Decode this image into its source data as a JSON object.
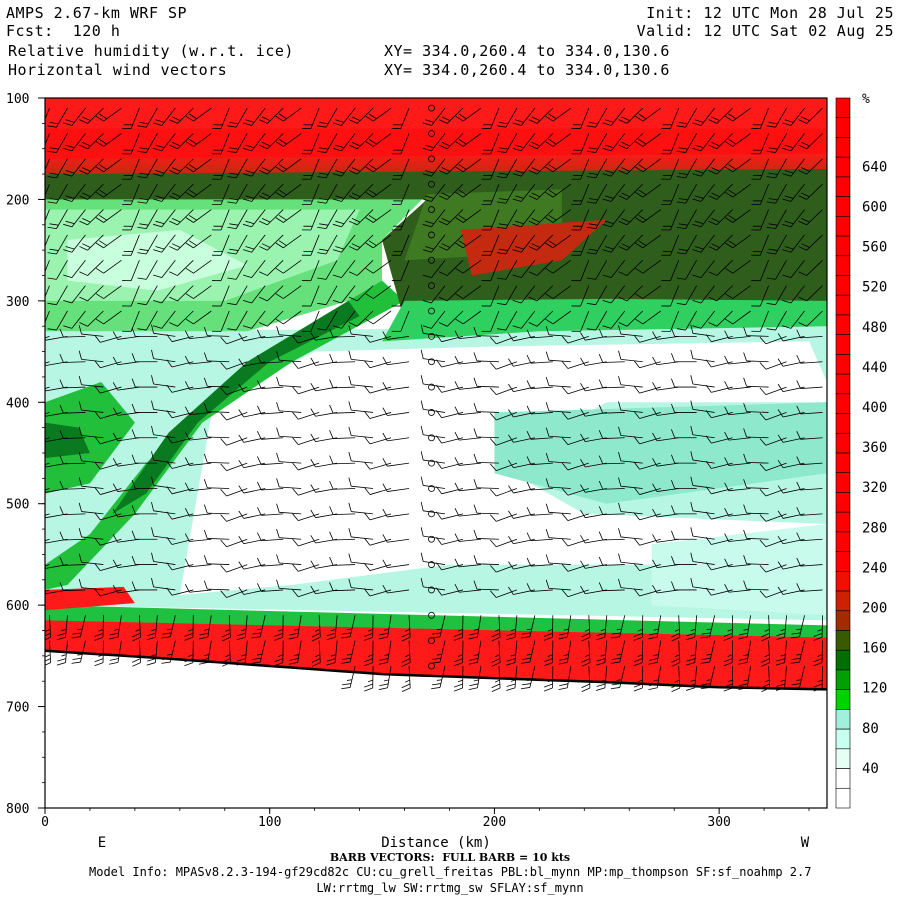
{
  "header": {
    "model": "AMPS 2.67-km WRF SP",
    "fcst": "Fcst:  120 h",
    "field1": "Relative humidity (w.r.t. ice)",
    "field2": "Horizontal wind vectors",
    "xy1": "XY= 334.0,260.4 to 334.0,130.6",
    "xy2": "XY= 334.0,260.4 to 334.0,130.6",
    "init": "Init: 12 UTC Mon 28 Jul 25",
    "valid": "Valid: 12 UTC Sat 02 Aug 25"
  },
  "footer": {
    "barb_note": "BARB VECTORS:  FULL BARB = 10 kts",
    "model_info": "Model Info: MPASv8.2.3-194-gf29cd82c CU:cu_grell_freitas PBL:bl_mynn MP:mp_thompson SF:sf_noahmp 2.7",
    "physics": "LW:rrtmg_lw SW:rrtmg_sw SFLAY:sf_mynn"
  },
  "chart_data": {
    "type": "heatmap",
    "title": "Relative humidity (w.r.t. ice)",
    "xlabel": "Distance (km)",
    "ylabel": "",
    "xlim": [
      0,
      348
    ],
    "ylim": [
      800,
      100
    ],
    "x_ticks": [
      0,
      100,
      200,
      300
    ],
    "y_ticks": [
      100,
      200,
      300,
      400,
      500,
      600,
      700,
      800
    ],
    "x_end_labels": [
      "E",
      "W"
    ],
    "colorbar": {
      "unit": "%",
      "tick_labels": [
        40,
        80,
        120,
        160,
        200,
        240,
        280,
        320,
        360,
        400,
        440,
        480,
        520,
        560,
        600,
        640
      ],
      "colors": [
        "#ffffff",
        "#ffffff",
        "#e6fff5",
        "#c8fff0",
        "#a0f0dc",
        "#00d200",
        "#00a000",
        "#006e00",
        "#3a5a00",
        "#a52a00",
        "#cc2200",
        "#ee1100",
        "#ff0000",
        "#ff0000",
        "#ff0000",
        "#ff0000",
        "#ff0000",
        "#ff0000",
        "#ff0000",
        "#ff0000",
        "#ff0000",
        "#ff0000",
        "#ff0000",
        "#ff0000",
        "#ff0000",
        "#ff0000",
        "#ff0000",
        "#ff0000",
        "#ff0000",
        "#ff0000",
        "#ff0000",
        "#ff0000",
        "#ff0000",
        "#ff0000",
        "#ff0000",
        "#ff0000"
      ]
    },
    "terrain_pressure": [
      {
        "x": 0,
        "p": 645
      },
      {
        "x": 50,
        "p": 652
      },
      {
        "x": 100,
        "p": 660
      },
      {
        "x": 150,
        "p": 668
      },
      {
        "x": 200,
        "p": 672
      },
      {
        "x": 250,
        "p": 676
      },
      {
        "x": 300,
        "p": 681
      },
      {
        "x": 348,
        "p": 683
      }
    ],
    "layers": [
      {
        "label": "upper red",
        "p_top": 100,
        "p_bottom": 165,
        "color": "#ff1a1a"
      },
      {
        "label": "dark green",
        "p_top": 165,
        "p_bottom": 200,
        "color": "#2e5a1a"
      },
      {
        "label": "moist green",
        "p_top": 200,
        "p_bottom": 300,
        "color": "#22cc44"
      },
      {
        "label": "dry white",
        "p_top": 340,
        "p_bottom": 590,
        "color": "#ffffff"
      },
      {
        "label": "low red",
        "p_top": 615,
        "p_bottom": 670,
        "color": "#ff1a1a"
      }
    ]
  }
}
